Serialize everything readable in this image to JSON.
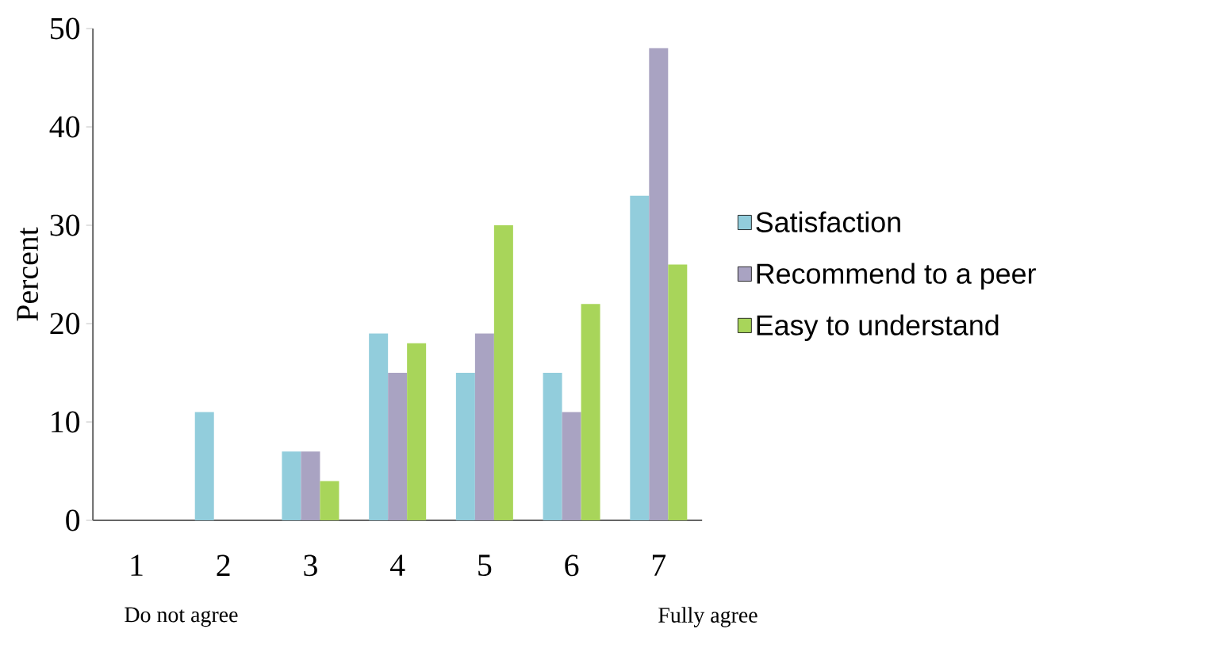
{
  "chart_data": {
    "type": "bar",
    "ylabel": "Percent",
    "categories": [
      "1",
      "2",
      "3",
      "4",
      "5",
      "6",
      "7"
    ],
    "series": [
      {
        "name": "Satisfaction",
        "color": "#92cddc",
        "values": [
          0,
          11,
          7,
          19,
          15,
          15,
          33
        ]
      },
      {
        "name": "Recommend to a peer",
        "color": "#a9a3c2",
        "values": [
          0,
          0,
          7,
          15,
          19,
          11,
          48
        ]
      },
      {
        "name": "Easy to understand",
        "color": "#a8d55a",
        "values": [
          0,
          0,
          4,
          18,
          30,
          22,
          26
        ]
      }
    ],
    "ylim": [
      0,
      50
    ],
    "yticks": [
      0,
      10,
      20,
      30,
      40,
      50
    ],
    "grid": false,
    "legend": "right",
    "annotations": [
      "Do not agree",
      "Fully agree"
    ]
  }
}
